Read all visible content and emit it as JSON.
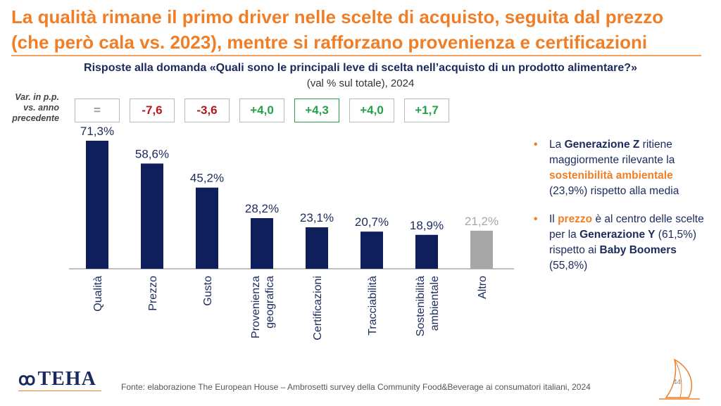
{
  "header": {
    "title_line1": "La qualità rimane il primo driver nelle scelte di acquisto, seguita dal prezzo",
    "title_line2": "(che però cala vs. 2023), mentre si rafforzano provenienza e certificazioni",
    "question": "Risposte alla domanda «Quali sono le principali leve di scelta nell’acquisto di un prodotto alimentare?»",
    "unit": "(val % sul totale), 2024"
  },
  "variation": {
    "label_line1": "Var. in p.p.",
    "label_line2": "vs. anno",
    "label_line3": "precedente",
    "values": [
      "=",
      "-7,6",
      "-3,6",
      "+4,0",
      "+4,3",
      "+4,0",
      "+1,7"
    ]
  },
  "chart_data": {
    "type": "bar",
    "categories": [
      "Qualità",
      "Prezzo",
      "Gusto",
      "Provenienza geografica",
      "Certificazioni",
      "Tracciabilità",
      "Sostenibilità ambientale",
      "Altro"
    ],
    "tick_labels": [
      [
        "Qualità"
      ],
      [
        "Prezzo"
      ],
      [
        "Gusto"
      ],
      [
        "Provenienza",
        "geografica"
      ],
      [
        "Certificazioni"
      ],
      [
        "Tracciabilità"
      ],
      [
        "Sostenibilità",
        "ambientale"
      ],
      [
        "Altro"
      ]
    ],
    "values": [
      71.3,
      58.6,
      45.2,
      28.2,
      23.1,
      20.7,
      18.9,
      21.2
    ],
    "data_labels": [
      "71,3%",
      "58,6%",
      "45,2%",
      "28,2%",
      "23,1%",
      "20,7%",
      "18,9%",
      "21,2%"
    ],
    "ylim": [
      0,
      80
    ],
    "grid": false,
    "colors": {
      "main": "#0f1f5c",
      "other": "#a6a6a6",
      "label": "#1b2a5c",
      "label_other": "#a6a6a6",
      "axis": "#7f7f7f"
    }
  },
  "bullets": [
    {
      "parts": [
        {
          "text": "La ",
          "style": "normal"
        },
        {
          "text": "Generazione Z",
          "style": "bold"
        },
        {
          "text": " ritiene maggiormente rilevante la ",
          "style": "normal"
        },
        {
          "text": "sostenibilità ambientale",
          "style": "orange"
        },
        {
          "text": " (23,9%) rispetto alla media",
          "style": "normal"
        }
      ]
    },
    {
      "parts": [
        {
          "text": "Il ",
          "style": "normal"
        },
        {
          "text": "prezzo",
          "style": "orange"
        },
        {
          "text": " è al centro delle scelte per la ",
          "style": "normal"
        },
        {
          "text": "Generazione Y",
          "style": "bold"
        },
        {
          "text": " (61,5%) rispetto ai ",
          "style": "normal"
        },
        {
          "text": "Baby Boomers",
          "style": "bold"
        },
        {
          "text": " (55,8%)",
          "style": "normal"
        }
      ]
    }
  ],
  "footer": {
    "logo_text": "TEHA",
    "source": "Fonte: elaborazione The European House – Ambrosetti survey della Community Food&Beverage ai consumatori italiani, 2024",
    "page_number": "44"
  }
}
